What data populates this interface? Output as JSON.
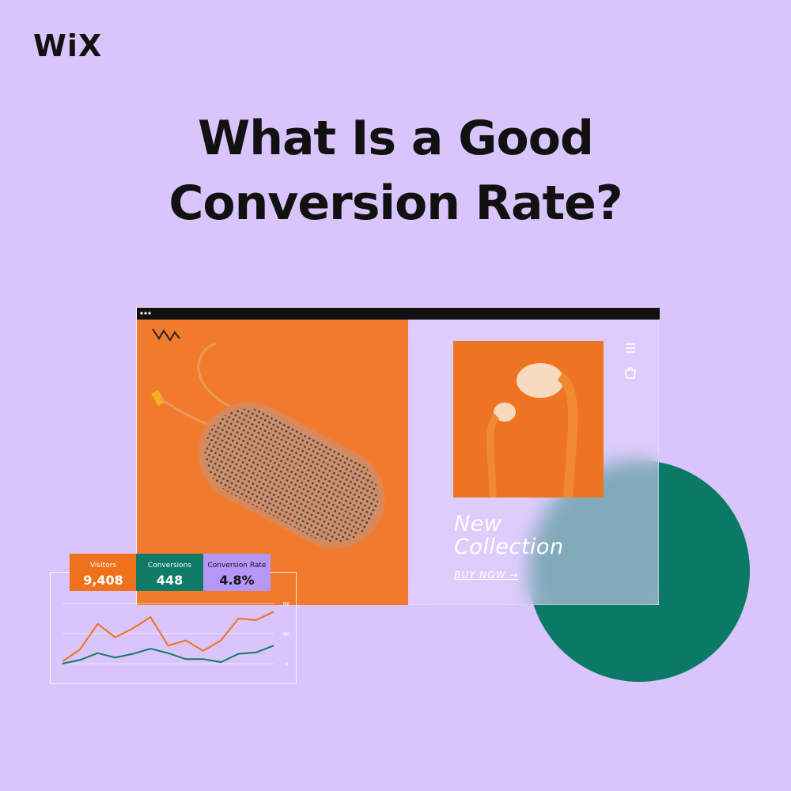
{
  "logo": "WiX",
  "title": [
    "What Is a Good",
    "Conversion Rate?"
  ],
  "hero": {
    "heading": [
      "New",
      "Collection"
    ],
    "link": "BUY NOW →"
  },
  "stats": [
    {
      "label": "Visitors",
      "value": "9,408"
    },
    {
      "label": "Conversions",
      "value": "448"
    },
    {
      "label": "Conversion Rate",
      "value": "4.8%"
    }
  ],
  "mini_chart": {
    "type": "line",
    "ylim": [
      0,
      8000
    ],
    "yticks": [
      {
        "value": 0,
        "label": "0"
      },
      {
        "value": 4000,
        "label": "4K"
      },
      {
        "value": 8000,
        "label": "8K"
      }
    ],
    "series": [
      {
        "color": "#f0711c",
        "values": [
          300,
          1900,
          5300,
          3500,
          4700,
          6200,
          2400,
          3100,
          1700,
          3100,
          6000,
          5800,
          6900
        ]
      },
      {
        "color": "#0f7a66",
        "values": [
          0,
          500,
          1400,
          800,
          1300,
          2000,
          1400,
          600,
          600,
          200,
          1300,
          1500,
          2400
        ]
      }
    ]
  }
}
